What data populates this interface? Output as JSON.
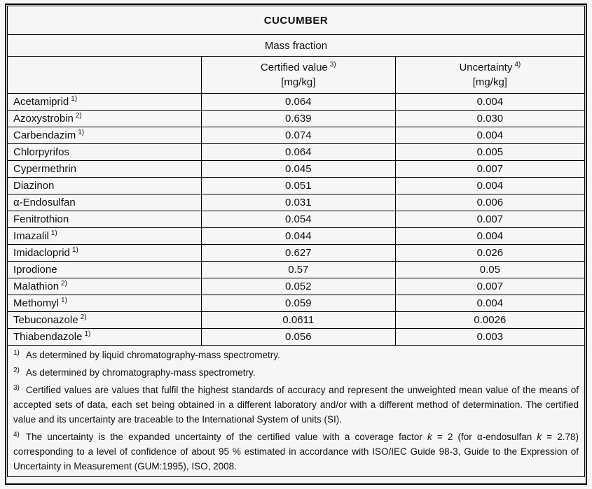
{
  "title": "CUCUMBER",
  "subtitle": "Mass fraction",
  "columns": {
    "analyte_header": "",
    "certified": {
      "label": "Certified value",
      "sup": "3)",
      "unit": "[mg/kg]"
    },
    "uncertainty": {
      "label": "Uncertainty",
      "sup": "4)",
      "unit": "[mg/kg]"
    }
  },
  "rows": [
    {
      "name": "Acetamiprid",
      "sup": "1)",
      "certified": "0.064",
      "uncertainty": "0.004"
    },
    {
      "name": "Azoxystrobin",
      "sup": "2)",
      "certified": "0.639",
      "uncertainty": "0.030"
    },
    {
      "name": "Carbendazim",
      "sup": "1)",
      "certified": "0.074",
      "uncertainty": "0.004"
    },
    {
      "name": "Chlorpyrifos",
      "sup": "",
      "certified": "0.064",
      "uncertainty": "0.005"
    },
    {
      "name": "Cypermethrin",
      "sup": "",
      "certified": "0.045",
      "uncertainty": "0.007"
    },
    {
      "name": "Diazinon",
      "sup": "",
      "certified": "0.051",
      "uncertainty": "0.004"
    },
    {
      "name": "α-Endosulfan",
      "sup": "",
      "certified": "0.031",
      "uncertainty": "0.006"
    },
    {
      "name": "Fenitrothion",
      "sup": "",
      "certified": "0.054",
      "uncertainty": "0.007"
    },
    {
      "name": "Imazalil",
      "sup": "1)",
      "certified": "0.044",
      "uncertainty": "0.004"
    },
    {
      "name": "Imidacloprid",
      "sup": "1)",
      "certified": "0.627",
      "uncertainty": "0.026"
    },
    {
      "name": "Iprodione",
      "sup": "",
      "certified": "0.57",
      "uncertainty": "0.05"
    },
    {
      "name": "Malathion",
      "sup": "2)",
      "certified": "0.052",
      "uncertainty": "0.007"
    },
    {
      "name": "Methomyl",
      "sup": "1)",
      "certified": "0.059",
      "uncertainty": "0.004"
    },
    {
      "name": "Tebuconazole",
      "sup": "2)",
      "certified": "0.0611",
      "uncertainty": "0.0026"
    },
    {
      "name": "Thiabendazole",
      "sup": "1)",
      "certified": "0.056",
      "uncertainty": "0.003"
    }
  ],
  "footnotes": [
    {
      "marker": "1)",
      "segments": [
        {
          "t": "As determined by liquid chromatography-mass spectrometry."
        }
      ]
    },
    {
      "marker": "2)",
      "segments": [
        {
          "t": "As determined by chromatography-mass spectrometry."
        }
      ]
    },
    {
      "marker": "3)",
      "segments": [
        {
          "t": "Certified values are values that fulfil the highest standards of accuracy and represent the unweighted mean value of the means of accepted sets of data, each set being obtained in a different laboratory and/or with a different method of determination. The certified value and its uncertainty are traceable to the International System of units (SI)."
        }
      ]
    },
    {
      "marker": "4)",
      "segments": [
        {
          "t": "The uncertainty is the expanded uncertainty of the certified value with a coverage factor "
        },
        {
          "t": "k",
          "i": true
        },
        {
          "t": " = 2 (for α-endosulfan "
        },
        {
          "t": "k",
          "i": true
        },
        {
          "t": " = 2.78) corresponding to a level of confidence of about 95 % estimated in accordance with ISO/IEC Guide 98-3, Guide to the Expression of Uncertainty in Measurement (GUM:1995), ISO, 2008."
        }
      ]
    }
  ],
  "colors": {
    "border": "#000000",
    "background": "#f6f6f6",
    "text": "#111111"
  }
}
